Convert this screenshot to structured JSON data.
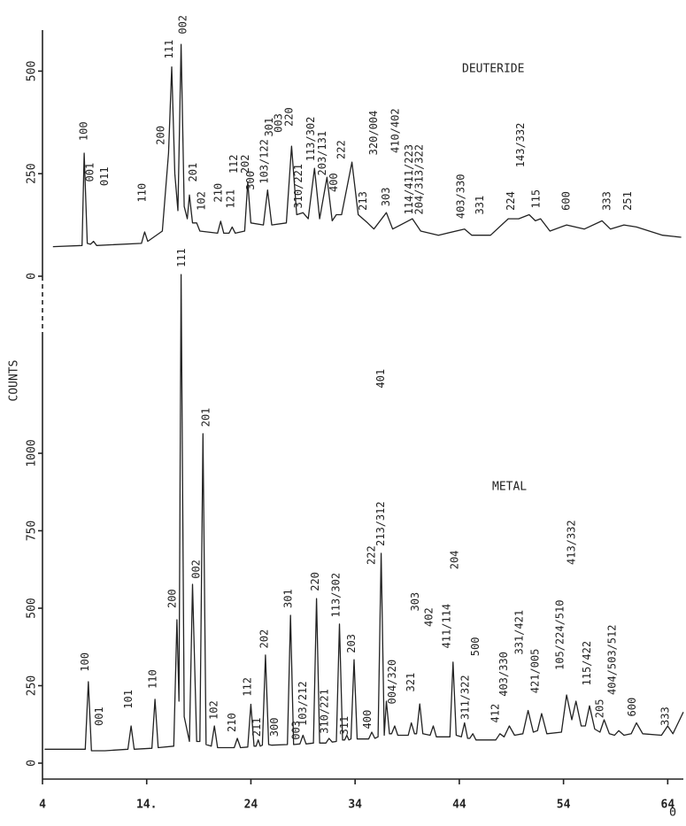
{
  "chart_data": [
    {
      "type": "line",
      "series": [
        {
          "name": "DEUTERIDE",
          "color": "#222222",
          "x": [
            5,
            7.8,
            8.0,
            8.3,
            8.6,
            8.9,
            9.2,
            13.5,
            13.8,
            14.1,
            15.5,
            16.1,
            16.4,
            16.7,
            17.0,
            17.3,
            17.6,
            17.9,
            18.1,
            18.4,
            18.8,
            19.1,
            20.8,
            21.1,
            21.4,
            21.9,
            22.2,
            22.5,
            23.4,
            23.7,
            24.0,
            25.2,
            25.6,
            26.0,
            27.4,
            27.9,
            28.4,
            29.0,
            29.5,
            30.1,
            30.6,
            31.3,
            31.8,
            32.2,
            32.7,
            33.7,
            34.3,
            35.2,
            35.8,
            37.0,
            37.6,
            39.5,
            40.3,
            42.0,
            44.5,
            45.2,
            45.8,
            47.0,
            48.7,
            49.7,
            50.7,
            51.3,
            51.8,
            52.7,
            54.3,
            56,
            57.7,
            58.5,
            59.8,
            61,
            63.5,
            65.3
          ],
          "values": [
            72,
            75,
            300,
            80,
            78,
            85,
            75,
            80,
            108,
            85,
            110,
            300,
            510,
            250,
            160,
            565,
            170,
            140,
            198,
            130,
            130,
            110,
            105,
            134,
            105,
            105,
            120,
            105,
            110,
            230,
            130,
            125,
            210,
            125,
            130,
            317,
            150,
            155,
            140,
            263,
            140,
            241,
            135,
            150,
            150,
            278,
            150,
            130,
            115,
            155,
            115,
            140,
            110,
            100,
            115,
            100,
            100,
            100,
            140,
            140,
            150,
            135,
            140,
            110,
            125,
            115,
            135,
            115,
            125,
            120,
            100,
            95
          ]
        }
      ],
      "xlim": [
        4,
        65.5
      ],
      "ylim": [
        0,
        600
      ],
      "yticks": [
        0,
        250,
        500
      ],
      "annotations": [
        {
          "text": "100",
          "x": 8.0,
          "y": 330
        },
        {
          "text": "001",
          "x": 8.6,
          "y": 230
        },
        {
          "text": "011",
          "x": 10.0,
          "y": 220
        },
        {
          "text": "110",
          "x": 13.6,
          "y": 180
        },
        {
          "text": "200",
          "x": 15.4,
          "y": 320
        },
        {
          "text": "111",
          "x": 16.2,
          "y": 530
        },
        {
          "text": "002",
          "x": 17.5,
          "y": 590
        },
        {
          "text": "201",
          "x": 18.5,
          "y": 230
        },
        {
          "text": "102",
          "x": 19.3,
          "y": 160
        },
        {
          "text": "210",
          "x": 20.9,
          "y": 180
        },
        {
          "text": "121",
          "x": 22.1,
          "y": 165
        },
        {
          "text": "112",
          "x": 22.4,
          "y": 250
        },
        {
          "text": "202",
          "x": 23.5,
          "y": 250
        },
        {
          "text": "300",
          "x": 24.0,
          "y": 210
        },
        {
          "text": "103/122",
          "x": 25.3,
          "y": 225
        },
        {
          "text": "301",
          "x": 25.8,
          "y": 340
        },
        {
          "text": "003",
          "x": 26.7,
          "y": 350
        },
        {
          "text": "220",
          "x": 27.7,
          "y": 365
        },
        {
          "text": "310/221",
          "x": 28.6,
          "y": 165
        },
        {
          "text": "113/302",
          "x": 29.8,
          "y": 280
        },
        {
          "text": "203/131",
          "x": 30.9,
          "y": 245
        },
        {
          "text": "400",
          "x": 32.0,
          "y": 205
        },
        {
          "text": "222",
          "x": 32.7,
          "y": 285
        },
        {
          "text": "213",
          "x": 34.8,
          "y": 160
        },
        {
          "text": "320/004",
          "x": 35.8,
          "y": 295
        },
        {
          "text": "303",
          "x": 37.0,
          "y": 170
        },
        {
          "text": "410/402",
          "x": 37.9,
          "y": 300
        },
        {
          "text": "114/411/223",
          "x": 39.2,
          "y": 150
        },
        {
          "text": "204/313/322",
          "x": 40.2,
          "y": 150
        },
        {
          "text": "403/330",
          "x": 44.2,
          "y": 140
        },
        {
          "text": "331",
          "x": 46.0,
          "y": 150
        },
        {
          "text": "224",
          "x": 49.0,
          "y": 160
        },
        {
          "text": "143/332",
          "x": 49.9,
          "y": 265
        },
        {
          "text": "115",
          "x": 51.4,
          "y": 165
        },
        {
          "text": "600",
          "x": 54.3,
          "y": 160
        },
        {
          "text": "333",
          "x": 58.2,
          "y": 160
        },
        {
          "text": "251",
          "x": 60.2,
          "y": 160
        }
      ]
    },
    {
      "type": "line",
      "xlabel": "Θ",
      "ylabel": "COUNTS",
      "series": [
        {
          "name": "METAL",
          "color": "#222222",
          "x": [
            4.2,
            8.1,
            8.4,
            8.7,
            10,
            12.2,
            12.5,
            12.8,
            14.5,
            14.8,
            15.1,
            16.6,
            16.9,
            17.1,
            17.3,
            17.6,
            18.1,
            18.4,
            18.8,
            19.1,
            19.4,
            19.7,
            20.2,
            20.5,
            20.8,
            22.4,
            22.7,
            23.0,
            23.7,
            24.0,
            24.3,
            24.5,
            24.7,
            24.9,
            25.1,
            25.4,
            25.7,
            26.0,
            27.5,
            27.8,
            28.1,
            28.7,
            29.0,
            29.3,
            30.0,
            30.3,
            30.6,
            31.2,
            31.5,
            31.8,
            32.2,
            32.5,
            32.8,
            33.0,
            33.2,
            33.4,
            33.6,
            33.9,
            34.2,
            35.3,
            35.6,
            35.9,
            36.2,
            36.5,
            36.8,
            37.0,
            37.3,
            37.5,
            37.8,
            38.1,
            39.1,
            39.4,
            39.7,
            39.9,
            40.2,
            40.5,
            41.2,
            41.5,
            41.8,
            43.1,
            43.4,
            43.7,
            44.2,
            44.5,
            44.8,
            45.0,
            45.3,
            45.6,
            47.5,
            47.9,
            48.3,
            48.8,
            49.3,
            50.1,
            50.6,
            51.1,
            51.5,
            51.9,
            52.4,
            53.8,
            54.3,
            54.8,
            55.2,
            55.7,
            56.1,
            56.5,
            57.0,
            57.5,
            57.9,
            58.4,
            58.9,
            59.3,
            59.8,
            60.5,
            61.0,
            61.6,
            63.4,
            64.0,
            64.5,
            65.5
          ],
          "values": [
            45,
            45,
            263,
            40,
            40,
            45,
            120,
            45,
            48,
            206,
            50,
            55,
            463,
            200,
            1577,
            150,
            70,
            577,
            70,
            70,
            1063,
            60,
            55,
            120,
            50,
            50,
            80,
            50,
            52,
            190,
            55,
            55,
            75,
            55,
            58,
            349,
            60,
            58,
            60,
            477,
            60,
            62,
            90,
            62,
            65,
            531,
            65,
            65,
            80,
            68,
            70,
            449,
            75,
            75,
            90,
            75,
            78,
            334,
            78,
            78,
            100,
            80,
            85,
            677,
            90,
            200,
            95,
            95,
            120,
            90,
            90,
            130,
            95,
            95,
            191,
            95,
            90,
            120,
            85,
            85,
            326,
            90,
            85,
            130,
            80,
            80,
            95,
            75,
            75,
            95,
            85,
            120,
            90,
            95,
            170,
            100,
            105,
            160,
            95,
            100,
            220,
            140,
            200,
            120,
            120,
            185,
            110,
            100,
            140,
            95,
            90,
            105,
            90,
            95,
            130,
            95,
            90,
            120,
            95,
            165
          ]
        }
      ],
      "xlim": [
        4,
        65.5
      ],
      "xticks": [
        4,
        {
          "value": 14,
          "label": "14."
        },
        24,
        34,
        44,
        54,
        64
      ],
      "ylim": [
        0,
        1600
      ],
      "yticks": [
        0,
        250,
        500,
        750,
        1000
      ],
      "annotations": [
        {
          "text": "100",
          "x": 8.1,
          "y": 295
        },
        {
          "text": "001",
          "x": 9.5,
          "y": 120
        },
        {
          "text": "101",
          "x": 12.3,
          "y": 175
        },
        {
          "text": "110",
          "x": 14.6,
          "y": 240
        },
        {
          "text": "200",
          "x": 16.5,
          "y": 500
        },
        {
          "text": "111",
          "x": 17.4,
          "y": 1600
        },
        {
          "text": "002",
          "x": 18.8,
          "y": 595
        },
        {
          "text": "201",
          "x": 19.7,
          "y": 1085
        },
        {
          "text": "102",
          "x": 20.5,
          "y": 140
        },
        {
          "text": "210",
          "x": 22.2,
          "y": 100
        },
        {
          "text": "112",
          "x": 23.7,
          "y": 215
        },
        {
          "text": "211",
          "x": 24.6,
          "y": 85
        },
        {
          "text": "202",
          "x": 25.3,
          "y": 370
        },
        {
          "text": "300",
          "x": 26.3,
          "y": 85
        },
        {
          "text": "301",
          "x": 27.6,
          "y": 500
        },
        {
          "text": "003",
          "x": 28.4,
          "y": 75
        },
        {
          "text": "103/212",
          "x": 29.0,
          "y": 120
        },
        {
          "text": "220",
          "x": 30.2,
          "y": 555
        },
        {
          "text": "310/221",
          "x": 31.1,
          "y": 95
        },
        {
          "text": "113/302",
          "x": 32.2,
          "y": 470
        },
        {
          "text": "311",
          "x": 33.0,
          "y": 90
        },
        {
          "text": "203",
          "x": 33.7,
          "y": 355
        },
        {
          "text": "400",
          "x": 35.2,
          "y": 110
        },
        {
          "text": "222",
          "x": 35.6,
          "y": 640
        },
        {
          "text": "213/312",
          "x": 36.5,
          "y": 700
        },
        {
          "text": "401",
          "x": 36.5,
          "y": 1210
        },
        {
          "text": "004/320",
          "x": 37.6,
          "y": 190
        },
        {
          "text": "321",
          "x": 39.4,
          "y": 230
        },
        {
          "text": "303",
          "x": 39.8,
          "y": 490
        },
        {
          "text": "402",
          "x": 41.1,
          "y": 440
        },
        {
          "text": "411/114",
          "x": 42.8,
          "y": 370
        },
        {
          "text": "204",
          "x": 43.6,
          "y": 625
        },
        {
          "text": "311/322",
          "x": 44.6,
          "y": 140
        },
        {
          "text": "500",
          "x": 45.6,
          "y": 345
        },
        {
          "text": "412",
          "x": 47.5,
          "y": 130
        },
        {
          "text": "403/330",
          "x": 48.3,
          "y": 215
        },
        {
          "text": "331/421",
          "x": 49.8,
          "y": 350
        },
        {
          "text": "421/005",
          "x": 51.3,
          "y": 225
        },
        {
          "text": "105/224/510",
          "x": 53.7,
          "y": 300
        },
        {
          "text": "413/332",
          "x": 54.8,
          "y": 640
        },
        {
          "text": "115/422",
          "x": 56.3,
          "y": 250
        },
        {
          "text": "205",
          "x": 57.5,
          "y": 145
        },
        {
          "text": "404/503/512",
          "x": 58.7,
          "y": 220
        },
        {
          "text": "600",
          "x": 60.6,
          "y": 150
        },
        {
          "text": "333",
          "x": 63.8,
          "y": 120
        }
      ]
    }
  ]
}
